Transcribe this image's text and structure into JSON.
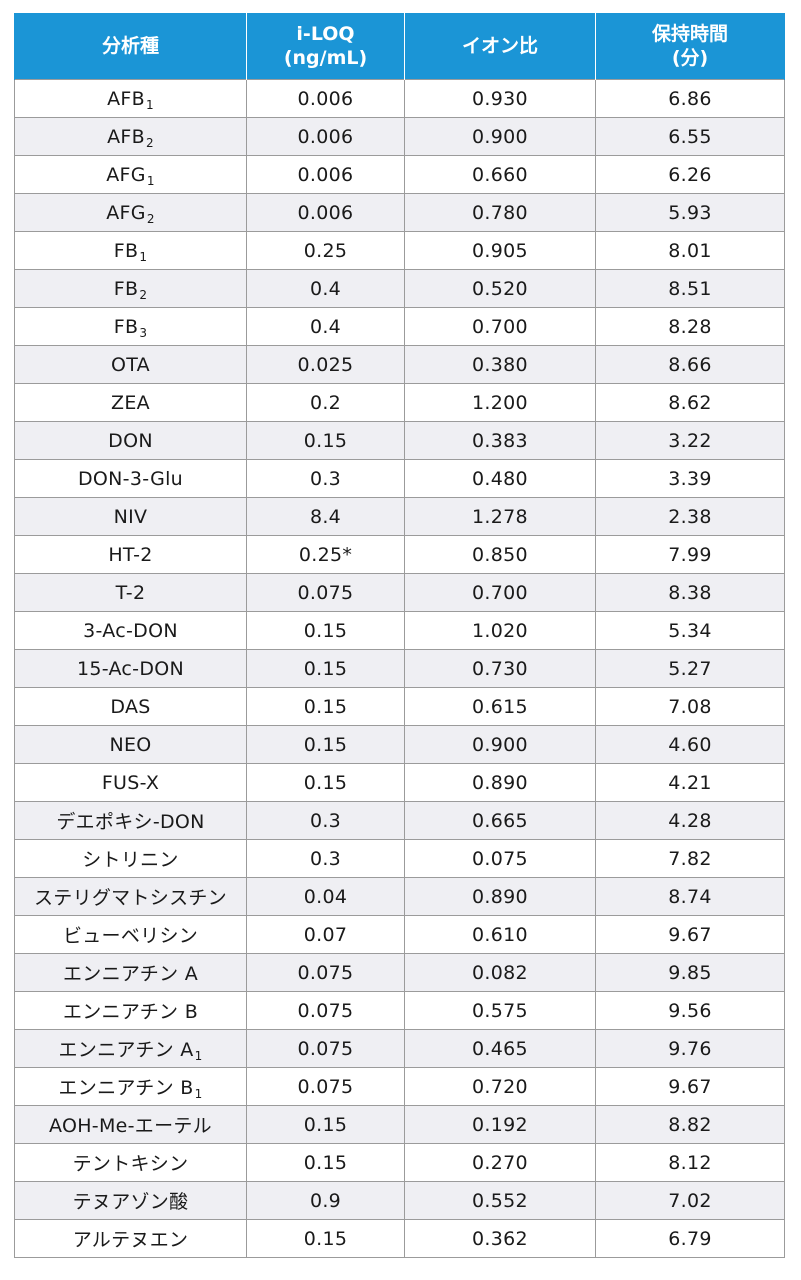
{
  "table": {
    "headers": [
      {
        "lines": [
          "分析種"
        ]
      },
      {
        "lines": [
          "i-LOQ",
          "(ng/mL)"
        ]
      },
      {
        "lines": [
          "イオン比"
        ]
      },
      {
        "lines": [
          "保持時間",
          "(分)"
        ]
      }
    ],
    "rows": [
      {
        "analyte": "AFB",
        "sub": "1",
        "loq": "0.006",
        "ratio": "0.930",
        "rt": "6.86"
      },
      {
        "analyte": "AFB",
        "sub": "2",
        "loq": "0.006",
        "ratio": "0.900",
        "rt": "6.55"
      },
      {
        "analyte": "AFG",
        "sub": "1",
        "loq": "0.006",
        "ratio": "0.660",
        "rt": "6.26"
      },
      {
        "analyte": "AFG",
        "sub": "2",
        "loq": "0.006",
        "ratio": "0.780",
        "rt": "5.93"
      },
      {
        "analyte": "FB",
        "sub": "1",
        "loq": "0.25",
        "ratio": "0.905",
        "rt": "8.01"
      },
      {
        "analyte": "FB",
        "sub": "2",
        "loq": "0.4",
        "ratio": "0.520",
        "rt": "8.51"
      },
      {
        "analyte": "FB",
        "sub": "3",
        "loq": "0.4",
        "ratio": "0.700",
        "rt": "8.28"
      },
      {
        "analyte": "OTA",
        "sub": "",
        "loq": "0.025",
        "ratio": "0.380",
        "rt": "8.66"
      },
      {
        "analyte": "ZEA",
        "sub": "",
        "loq": "0.2",
        "ratio": "1.200",
        "rt": "8.62"
      },
      {
        "analyte": "DON",
        "sub": "",
        "loq": "0.15",
        "ratio": "0.383",
        "rt": "3.22"
      },
      {
        "analyte": "DON-3-Glu",
        "sub": "",
        "loq": "0.3",
        "ratio": "0.480",
        "rt": "3.39"
      },
      {
        "analyte": "NIV",
        "sub": "",
        "loq": "8.4",
        "ratio": "1.278",
        "rt": "2.38"
      },
      {
        "analyte": "HT-2",
        "sub": "",
        "loq": "0.25*",
        "ratio": "0.850",
        "rt": "7.99"
      },
      {
        "analyte": "T-2",
        "sub": "",
        "loq": "0.075",
        "ratio": "0.700",
        "rt": "8.38"
      },
      {
        "analyte": "3-Ac-DON",
        "sub": "",
        "loq": "0.15",
        "ratio": "1.020",
        "rt": "5.34"
      },
      {
        "analyte": "15-Ac-DON",
        "sub": "",
        "loq": "0.15",
        "ratio": "0.730",
        "rt": "5.27"
      },
      {
        "analyte": "DAS",
        "sub": "",
        "loq": "0.15",
        "ratio": "0.615",
        "rt": "7.08"
      },
      {
        "analyte": "NEO",
        "sub": "",
        "loq": "0.15",
        "ratio": "0.900",
        "rt": "4.60"
      },
      {
        "analyte": "FUS-X",
        "sub": "",
        "loq": "0.15",
        "ratio": "0.890",
        "rt": "4.21"
      },
      {
        "analyte": "デエポキシ-DON",
        "sub": "",
        "loq": "0.3",
        "ratio": "0.665",
        "rt": "4.28"
      },
      {
        "analyte": "シトリニン",
        "sub": "",
        "loq": "0.3",
        "ratio": "0.075",
        "rt": "7.82"
      },
      {
        "analyte": "ステリグマトシスチン",
        "sub": "",
        "loq": "0.04",
        "ratio": "0.890",
        "rt": "8.74"
      },
      {
        "analyte": "ビューベリシン",
        "sub": "",
        "loq": "0.07",
        "ratio": "0.610",
        "rt": "9.67"
      },
      {
        "analyte": "エンニアチン A",
        "sub": "",
        "loq": "0.075",
        "ratio": "0.082",
        "rt": "9.85"
      },
      {
        "analyte": "エンニアチン B",
        "sub": "",
        "loq": "0.075",
        "ratio": "0.575",
        "rt": "9.56"
      },
      {
        "analyte": "エンニアチン A",
        "sub": "1",
        "loq": "0.075",
        "ratio": "0.465",
        "rt": "9.76"
      },
      {
        "analyte": "エンニアチン B",
        "sub": "1",
        "loq": "0.075",
        "ratio": "0.720",
        "rt": "9.67"
      },
      {
        "analyte": "AOH-Me-エーテル",
        "sub": "",
        "loq": "0.15",
        "ratio": "0.192",
        "rt": "8.82"
      },
      {
        "analyte": "テントキシン",
        "sub": "",
        "loq": "0.15",
        "ratio": "0.270",
        "rt": "8.12"
      },
      {
        "analyte": "テヌアゾン酸",
        "sub": "",
        "loq": "0.9",
        "ratio": "0.552",
        "rt": "7.02"
      },
      {
        "analyte": "アルテヌエン",
        "sub": "",
        "loq": "0.15",
        "ratio": "0.362",
        "rt": "6.79"
      }
    ]
  }
}
